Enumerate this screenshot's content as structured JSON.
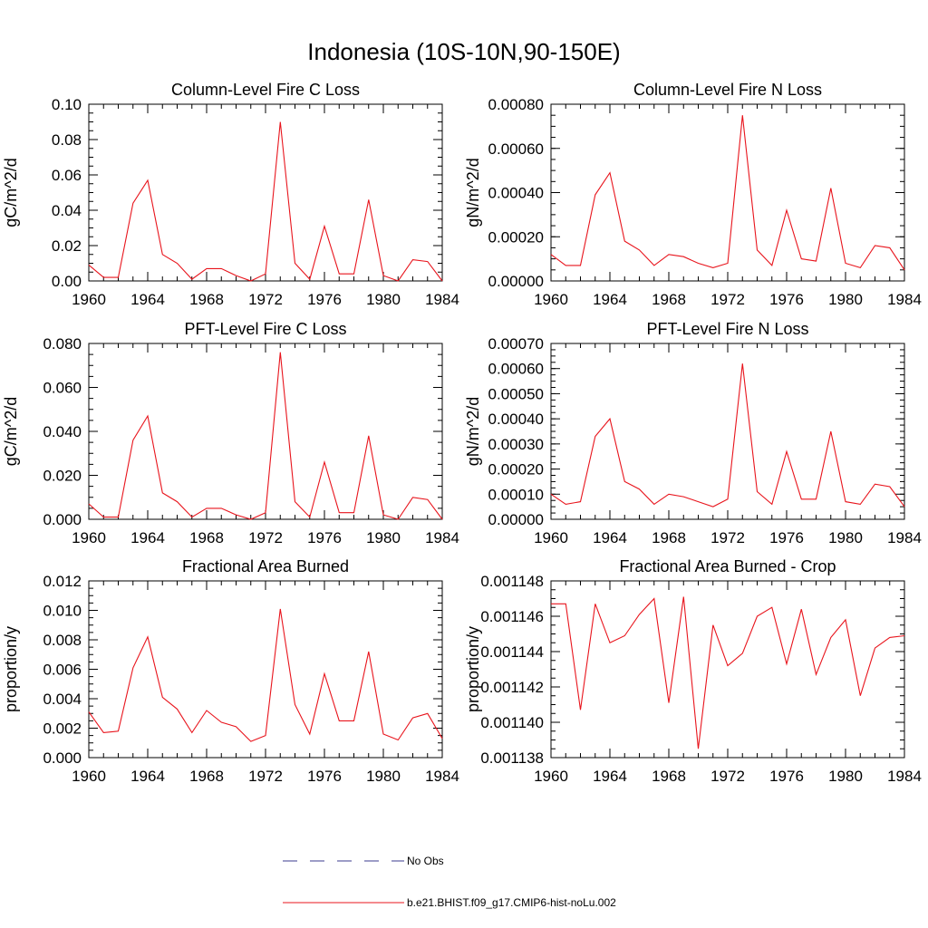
{
  "figure": {
    "title": "Indonesia (10S-10N,90-150E)",
    "line_color": "#e8141c",
    "legend": {
      "placement": "bottom-center",
      "entries": [
        {
          "label": "No Obs",
          "style": "dashed",
          "color": "#3b3b8f"
        },
        {
          "label": "b.e21.BHIST.f09_g17.CMIP6-hist-noLu.002",
          "style": "solid",
          "color": "#e8141c"
        }
      ]
    }
  },
  "chart_data": [
    {
      "type": "line",
      "title": "Column-Level Fire C Loss",
      "ylabel": "gC/m^2/d",
      "xlim": [
        1960,
        1984
      ],
      "ylim": [
        0,
        0.1
      ],
      "xticks": [
        "1960",
        "1964",
        "1968",
        "1972",
        "1976",
        "1980",
        "1984"
      ],
      "yticks": [
        "0.00",
        "0.02",
        "0.04",
        "0.06",
        "0.08",
        "0.10"
      ],
      "x": [
        1960,
        1961,
        1962,
        1963,
        1964,
        1965,
        1966,
        1967,
        1968,
        1969,
        1970,
        1971,
        1972,
        1973,
        1974,
        1975,
        1976,
        1977,
        1978,
        1979,
        1980,
        1981,
        1982,
        1983,
        1984
      ],
      "values": [
        0.009,
        0.002,
        0.002,
        0.044,
        0.057,
        0.015,
        0.01,
        0.001,
        0.007,
        0.007,
        0.003,
        0.0,
        0.004,
        0.09,
        0.01,
        0.001,
        0.031,
        0.004,
        0.004,
        0.046,
        0.003,
        0.0,
        0.012,
        0.011,
        0.0
      ]
    },
    {
      "type": "line",
      "title": "Column-Level Fire N Loss",
      "ylabel": "gN/m^2/d",
      "xlim": [
        1960,
        1984
      ],
      "ylim": [
        0,
        0.0008
      ],
      "xticks": [
        "1960",
        "1964",
        "1968",
        "1972",
        "1976",
        "1980",
        "1984"
      ],
      "yticks": [
        "0.00000",
        "0.00020",
        "0.00040",
        "0.00060",
        "0.00080"
      ],
      "x": [
        1960,
        1961,
        1962,
        1963,
        1964,
        1965,
        1966,
        1967,
        1968,
        1969,
        1970,
        1971,
        1972,
        1973,
        1974,
        1975,
        1976,
        1977,
        1978,
        1979,
        1980,
        1981,
        1982,
        1983,
        1984
      ],
      "values": [
        0.00012,
        7e-05,
        7e-05,
        0.00039,
        0.00049,
        0.00018,
        0.00014,
        7e-05,
        0.00012,
        0.00011,
        8e-05,
        6e-05,
        8e-05,
        0.00075,
        0.00014,
        7e-05,
        0.00032,
        0.0001,
        9e-05,
        0.00042,
        8e-05,
        6e-05,
        0.00016,
        0.00015,
        5e-05
      ]
    },
    {
      "type": "line",
      "title": "PFT-Level Fire C Loss",
      "ylabel": "gC/m^2/d",
      "xlim": [
        1960,
        1984
      ],
      "ylim": [
        0,
        0.08
      ],
      "xticks": [
        "1960",
        "1964",
        "1968",
        "1972",
        "1976",
        "1980",
        "1984"
      ],
      "yticks": [
        "0.000",
        "0.020",
        "0.040",
        "0.060",
        "0.080"
      ],
      "x": [
        1960,
        1961,
        1962,
        1963,
        1964,
        1965,
        1966,
        1967,
        1968,
        1969,
        1970,
        1971,
        1972,
        1973,
        1974,
        1975,
        1976,
        1977,
        1978,
        1979,
        1980,
        1981,
        1982,
        1983,
        1984
      ],
      "values": [
        0.007,
        0.001,
        0.001,
        0.036,
        0.047,
        0.012,
        0.008,
        0.001,
        0.005,
        0.005,
        0.002,
        0.0,
        0.003,
        0.076,
        0.008,
        0.001,
        0.026,
        0.003,
        0.003,
        0.038,
        0.002,
        0.0,
        0.01,
        0.009,
        0.0
      ]
    },
    {
      "type": "line",
      "title": "PFT-Level Fire N Loss",
      "ylabel": "gN/m^2/d",
      "xlim": [
        1960,
        1984
      ],
      "ylim": [
        0,
        0.0007
      ],
      "xticks": [
        "1960",
        "1964",
        "1968",
        "1972",
        "1976",
        "1980",
        "1984"
      ],
      "yticks": [
        "0.00000",
        "0.00010",
        "0.00020",
        "0.00030",
        "0.00040",
        "0.00050",
        "0.00060",
        "0.00070"
      ],
      "x": [
        1960,
        1961,
        1962,
        1963,
        1964,
        1965,
        1966,
        1967,
        1968,
        1969,
        1970,
        1971,
        1972,
        1973,
        1974,
        1975,
        1976,
        1977,
        1978,
        1979,
        1980,
        1981,
        1982,
        1983,
        1984
      ],
      "values": [
        0.0001,
        6e-05,
        7e-05,
        0.00033,
        0.0004,
        0.00015,
        0.00012,
        6e-05,
        0.0001,
        9e-05,
        7e-05,
        5e-05,
        8e-05,
        0.00062,
        0.00011,
        6e-05,
        0.00027,
        8e-05,
        8e-05,
        0.00035,
        7e-05,
        6e-05,
        0.00014,
        0.00013,
        5e-05
      ]
    },
    {
      "type": "line",
      "title": "Fractional Area Burned",
      "ylabel": "proportion/y",
      "xlim": [
        1960,
        1984
      ],
      "ylim": [
        0,
        0.012
      ],
      "xticks": [
        "1960",
        "1964",
        "1968",
        "1972",
        "1976",
        "1980",
        "1984"
      ],
      "yticks": [
        "0.000",
        "0.002",
        "0.004",
        "0.006",
        "0.008",
        "0.010",
        "0.012"
      ],
      "x": [
        1960,
        1961,
        1962,
        1963,
        1964,
        1965,
        1966,
        1967,
        1968,
        1969,
        1970,
        1971,
        1972,
        1973,
        1974,
        1975,
        1976,
        1977,
        1978,
        1979,
        1980,
        1981,
        1982,
        1983,
        1984
      ],
      "values": [
        0.0031,
        0.0017,
        0.0018,
        0.0061,
        0.0082,
        0.0041,
        0.0033,
        0.0017,
        0.0032,
        0.0024,
        0.0021,
        0.0011,
        0.0015,
        0.0101,
        0.0036,
        0.0016,
        0.0057,
        0.0025,
        0.0025,
        0.0072,
        0.0016,
        0.0012,
        0.0027,
        0.003,
        0.0013
      ]
    },
    {
      "type": "line",
      "title": "Fractional Area Burned - Crop",
      "ylabel": "proportion/y",
      "xlim": [
        1960,
        1984
      ],
      "ylim": [
        0.001138,
        0.001148
      ],
      "xticks": [
        "1960",
        "1964",
        "1968",
        "1972",
        "1976",
        "1980",
        "1984"
      ],
      "yticks": [
        "0.001138",
        "0.001140",
        "0.001142",
        "0.001144",
        "0.001146",
        "0.001148"
      ],
      "x": [
        1960,
        1961,
        1962,
        1963,
        1964,
        1965,
        1966,
        1967,
        1968,
        1969,
        1970,
        1971,
        1972,
        1973,
        1974,
        1975,
        1976,
        1977,
        1978,
        1979,
        1980,
        1981,
        1982,
        1983,
        1984
      ],
      "values": [
        0.0011467,
        0.0011467,
        0.0011407,
        0.0011467,
        0.0011445,
        0.0011449,
        0.0011461,
        0.001147,
        0.0011411,
        0.0011471,
        0.0011385,
        0.0011455,
        0.0011432,
        0.0011439,
        0.001146,
        0.0011465,
        0.0011433,
        0.0011464,
        0.0011427,
        0.0011448,
        0.0011458,
        0.0011415,
        0.0011442,
        0.0011448,
        0.0011449
      ]
    }
  ]
}
